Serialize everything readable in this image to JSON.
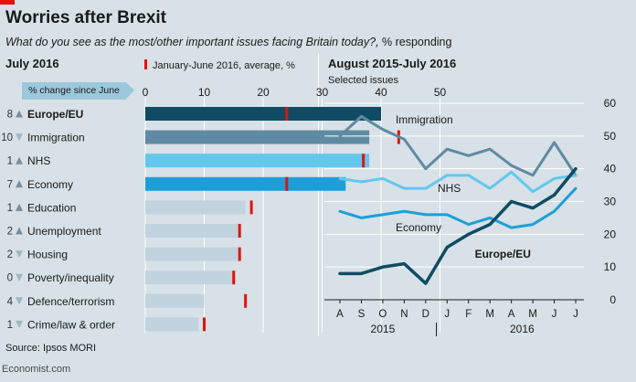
{
  "header": {
    "title": "Worries after Brexit",
    "subtitle": "What do you see as the most/other important issues facing Britain today?,",
    "subtitle_unit": " % responding"
  },
  "left_panel": {
    "title": "July 2016",
    "legend": "January-June 2016, average, %",
    "change_label": "% change since June"
  },
  "right_panel": {
    "title": "August 2015-July 2016",
    "subtitle": "Selected issues"
  },
  "footer": {
    "source": "Source: Ipsos MORI",
    "credit": "Economist.com"
  },
  "colors": {
    "dark_navy": "#0f4c63",
    "slate_blue": "#5e8ba3",
    "light_cyan": "#64c7ee",
    "medium_blue": "#1d9fd6",
    "grey_blue": "#c1d3df",
    "average_marker": "#e3120b",
    "up_arrow": "#7d8d99",
    "down_arrow": "#a3b5c2"
  },
  "chart_data": [
    {
      "type": "bar",
      "orientation": "horizontal",
      "title": "July 2016",
      "xlim": [
        0,
        50
      ],
      "xticks": [
        "0",
        "10",
        "20",
        "30",
        "40",
        "50"
      ],
      "categories": [
        "Europe/EU",
        "Immigration",
        "NHS",
        "Economy",
        "Education",
        "Unemployment",
        "Housing",
        "Poverty/inequality",
        "Defence/terrorism",
        "Crime/law & order"
      ],
      "series": [
        {
          "name": "July 2016",
          "values": [
            40,
            38,
            38,
            34,
            17,
            16,
            16,
            15,
            10,
            9
          ]
        },
        {
          "name": "January-June 2016, average, %",
          "values": [
            24,
            43,
            37,
            24,
            18,
            16,
            16,
            15,
            17,
            10
          ]
        }
      ],
      "change_since_june": [
        8,
        10,
        1,
        7,
        1,
        2,
        2,
        0,
        4,
        1
      ],
      "change_direction": [
        "up",
        "down",
        "up",
        "up",
        "up",
        "up",
        "down",
        "down",
        "down",
        "down"
      ],
      "bar_colors": [
        "#0f4c63",
        "#5e8ba3",
        "#64c7ee",
        "#1d9fd6",
        "#c1d3df",
        "#c1d3df",
        "#c1d3df",
        "#c1d3df",
        "#c1d3df",
        "#c1d3df"
      ]
    },
    {
      "type": "line",
      "title": "August 2015-July 2016",
      "subtitle": "Selected issues",
      "x": [
        "A",
        "S",
        "O",
        "N",
        "D",
        "J",
        "F",
        "M",
        "A",
        "M",
        "J",
        "J"
      ],
      "year_labels": [
        "2015",
        "2016"
      ],
      "ylim": [
        0,
        60
      ],
      "yticks": [
        "0",
        "10",
        "20",
        "30",
        "40",
        "50",
        "60"
      ],
      "grid": true,
      "series": [
        {
          "name": "Immigration",
          "values": [
            50,
            56,
            52,
            49,
            40,
            46,
            44,
            46,
            41,
            38,
            48,
            38
          ],
          "color": "#5e8ba3",
          "bold": false
        },
        {
          "name": "NHS",
          "values": [
            37,
            36,
            37,
            34,
            34,
            38,
            38,
            34,
            39,
            33,
            37,
            38
          ],
          "color": "#64c7ee",
          "bold": false
        },
        {
          "name": "Economy",
          "values": [
            27,
            25,
            26,
            27,
            26,
            26,
            23,
            25,
            22,
            23,
            27,
            34
          ],
          "color": "#1d9fd6",
          "bold": false
        },
        {
          "name": "Europe/EU",
          "values": [
            8,
            8,
            10,
            11,
            5,
            16,
            20,
            23,
            30,
            28,
            32,
            40
          ],
          "color": "#0f4c63",
          "bold": true
        }
      ]
    }
  ]
}
